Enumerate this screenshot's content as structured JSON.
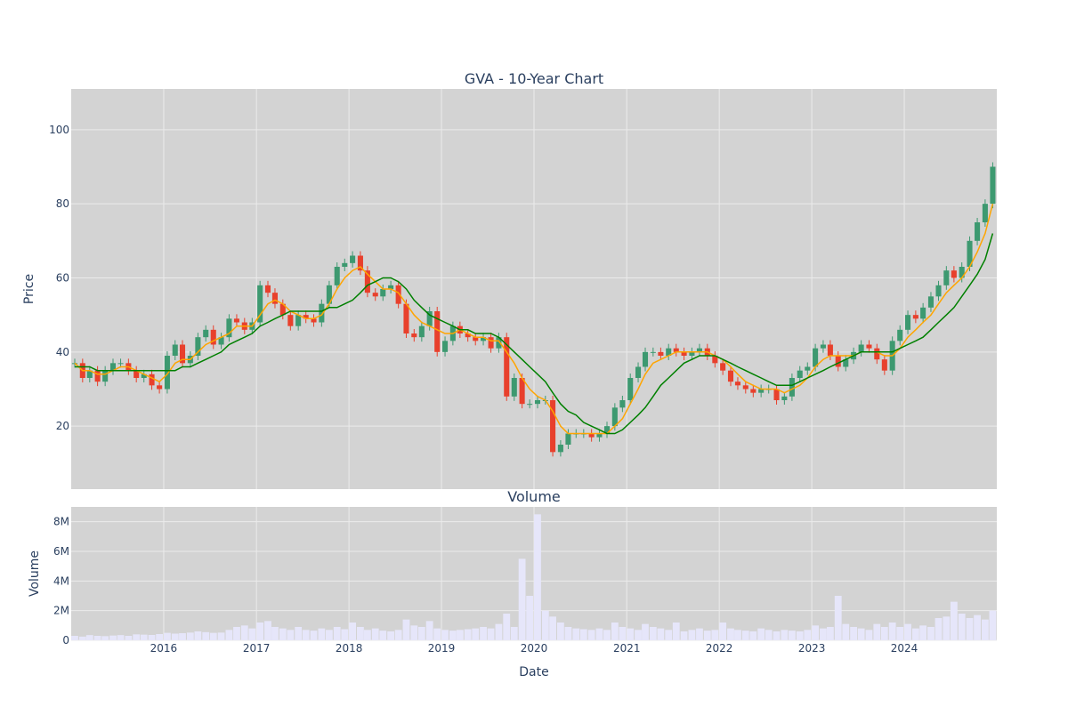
{
  "colors": {
    "plot_bg": "#d3d3d3",
    "grid": "#ebebeb",
    "up": "#3d9970",
    "down": "#e8402c",
    "ma_short": "#ffa500",
    "ma_long": "#008000",
    "volume_bar": "#e6e6fa",
    "text": "#2a3f5f"
  },
  "chart_data": [
    {
      "type": "candlestick",
      "title": "GVA - 10-Year Chart",
      "xlabel": "",
      "ylabel": "Price",
      "x_range": [
        "2015-01-01",
        "2024-12-31"
      ],
      "ylim": [
        3,
        111
      ],
      "grid": true,
      "x_ticks": [
        "2016",
        "2017",
        "2018",
        "2019",
        "2020",
        "2021",
        "2022",
        "2023",
        "2024"
      ],
      "y_ticks": [
        20,
        40,
        60,
        80,
        100
      ],
      "series": [
        {
          "kind": "ohlc",
          "dates": [
            "2015-01",
            "2015-02",
            "2015-03",
            "2015-04",
            "2015-05",
            "2015-06",
            "2015-07",
            "2015-08",
            "2015-09",
            "2015-10",
            "2015-11",
            "2015-12",
            "2016-01",
            "2016-02",
            "2016-03",
            "2016-04",
            "2016-05",
            "2016-06",
            "2016-07",
            "2016-08",
            "2016-09",
            "2016-10",
            "2016-11",
            "2016-12",
            "2017-01",
            "2017-02",
            "2017-03",
            "2017-04",
            "2017-05",
            "2017-06",
            "2017-07",
            "2017-08",
            "2017-09",
            "2017-10",
            "2017-11",
            "2017-12",
            "2018-01",
            "2018-02",
            "2018-03",
            "2018-04",
            "2018-05",
            "2018-06",
            "2018-07",
            "2018-08",
            "2018-09",
            "2018-10",
            "2018-11",
            "2018-12",
            "2019-01",
            "2019-02",
            "2019-03",
            "2019-04",
            "2019-05",
            "2019-06",
            "2019-07",
            "2019-08",
            "2019-09",
            "2019-10",
            "2019-11",
            "2019-12",
            "2020-01",
            "2020-02",
            "2020-03",
            "2020-04",
            "2020-05",
            "2020-06",
            "2020-07",
            "2020-08",
            "2020-09",
            "2020-10",
            "2020-11",
            "2020-12",
            "2021-01",
            "2021-02",
            "2021-03",
            "2021-04",
            "2021-05",
            "2021-06",
            "2021-07",
            "2021-08",
            "2021-09",
            "2021-10",
            "2021-11",
            "2021-12",
            "2022-01",
            "2022-02",
            "2022-03",
            "2022-04",
            "2022-05",
            "2022-06",
            "2022-07",
            "2022-08",
            "2022-09",
            "2022-10",
            "2022-11",
            "2022-12",
            "2023-01",
            "2023-02",
            "2023-03",
            "2023-04",
            "2023-05",
            "2023-06",
            "2023-07",
            "2023-08",
            "2023-09",
            "2023-10",
            "2023-11",
            "2023-12",
            "2024-01",
            "2024-02",
            "2024-03",
            "2024-04",
            "2024-05",
            "2024-06",
            "2024-07",
            "2024-08",
            "2024-09",
            "2024-10",
            "2024-11",
            "2024-12"
          ],
          "close": [
            37,
            33,
            35,
            32,
            35,
            37,
            37,
            35,
            33,
            34,
            31,
            30,
            39,
            42,
            37,
            39,
            44,
            46,
            42,
            44,
            49,
            48,
            46,
            48,
            58,
            56,
            53,
            50,
            47,
            50,
            49,
            48,
            53,
            58,
            63,
            64,
            66,
            62,
            56,
            55,
            57,
            58,
            53,
            45,
            44,
            47,
            51,
            40,
            43,
            47,
            45,
            44,
            43,
            44,
            41,
            44,
            28,
            33,
            26,
            26,
            27,
            27,
            13,
            15,
            18,
            18,
            18,
            17,
            18,
            20,
            25,
            27,
            33,
            36,
            40,
            40,
            39,
            41,
            40,
            39,
            40,
            41,
            39,
            37,
            35,
            32,
            31,
            30,
            29,
            30,
            30,
            27,
            28,
            33,
            35,
            36,
            41,
            42,
            39,
            36,
            38,
            40,
            42,
            41,
            38,
            35,
            43,
            46,
            50,
            49,
            52,
            55,
            58,
            62,
            60,
            63,
            70,
            75,
            80,
            90
          ]
        },
        {
          "kind": "line",
          "name": "",
          "color_key": "ma_short",
          "y": [
            37,
            35,
            35,
            34,
            34,
            35,
            36,
            36,
            35,
            34,
            33,
            32,
            34,
            37,
            38,
            38,
            40,
            42,
            43,
            44,
            45,
            47,
            47,
            47,
            50,
            53,
            54,
            53,
            51,
            50,
            49,
            49,
            50,
            53,
            57,
            60,
            62,
            63,
            61,
            59,
            57,
            57,
            56,
            53,
            50,
            48,
            47,
            46,
            45,
            45,
            46,
            45,
            44,
            44,
            43,
            43,
            40,
            37,
            33,
            30,
            28,
            27,
            24,
            20,
            18,
            18,
            18,
            18,
            18,
            18,
            20,
            22,
            26,
            30,
            34,
            37,
            38,
            39,
            40,
            40,
            40,
            40,
            40,
            39,
            38,
            36,
            34,
            32,
            31,
            30,
            30,
            30,
            29,
            30,
            31,
            33,
            36,
            38,
            39,
            39,
            39,
            39,
            40,
            40,
            40,
            39,
            39,
            41,
            44,
            46,
            48,
            50,
            53,
            56,
            58,
            60,
            63,
            67,
            72,
            80
          ]
        },
        {
          "kind": "line",
          "name": "",
          "color_key": "ma_long",
          "y": [
            36,
            36,
            36,
            35,
            35,
            35,
            35,
            35,
            35,
            35,
            35,
            35,
            35,
            35,
            36,
            36,
            37,
            38,
            39,
            40,
            42,
            43,
            44,
            45,
            47,
            48,
            49,
            50,
            51,
            51,
            51,
            51,
            51,
            52,
            52,
            53,
            54,
            56,
            58,
            59,
            60,
            60,
            59,
            57,
            54,
            52,
            50,
            49,
            48,
            47,
            46,
            46,
            45,
            45,
            45,
            44,
            42,
            40,
            38,
            36,
            34,
            32,
            29,
            26,
            24,
            23,
            21,
            20,
            19,
            18,
            18,
            19,
            21,
            23,
            25,
            28,
            31,
            33,
            35,
            37,
            38,
            39,
            39,
            39,
            38,
            37,
            36,
            35,
            34,
            33,
            32,
            31,
            31,
            31,
            32,
            33,
            34,
            35,
            36,
            37,
            38,
            39,
            40,
            40,
            40,
            40,
            40,
            41,
            42,
            43,
            44,
            46,
            48,
            50,
            52,
            55,
            58,
            61,
            65,
            72
          ]
        }
      ]
    },
    {
      "type": "bar",
      "title": "Volume",
      "xlabel": "Date",
      "ylabel": "Volume",
      "ylim": [
        0,
        9000000
      ],
      "grid": true,
      "x_ticks": [
        "2016",
        "2017",
        "2018",
        "2019",
        "2020",
        "2021",
        "2022",
        "2023",
        "2024"
      ],
      "y_ticks": [
        {
          "value": 0,
          "label": "0"
        },
        {
          "value": 2000000,
          "label": "2M"
        },
        {
          "value": 4000000,
          "label": "4M"
        },
        {
          "value": 6000000,
          "label": "6M"
        },
        {
          "value": 8000000,
          "label": "8M"
        }
      ],
      "values": [
        300000,
        250000,
        350000,
        300000,
        280000,
        320000,
        350000,
        300000,
        400000,
        380000,
        360000,
        420000,
        500000,
        450000,
        480000,
        520000,
        600000,
        550000,
        500000,
        520000,
        700000,
        900000,
        1000000,
        800000,
        1200000,
        1300000,
        900000,
        800000,
        700000,
        900000,
        700000,
        650000,
        800000,
        700000,
        900000,
        750000,
        1200000,
        900000,
        700000,
        800000,
        650000,
        600000,
        700000,
        1400000,
        1000000,
        900000,
        1300000,
        800000,
        700000,
        650000,
        700000,
        750000,
        800000,
        900000,
        800000,
        1100000,
        1800000,
        900000,
        5500000,
        3000000,
        8500000,
        2000000,
        1600000,
        1200000,
        900000,
        800000,
        750000,
        700000,
        800000,
        700000,
        1200000,
        900000,
        800000,
        700000,
        1100000,
        900000,
        800000,
        700000,
        1200000,
        600000,
        700000,
        800000,
        650000,
        700000,
        1200000,
        800000,
        700000,
        650000,
        600000,
        800000,
        700000,
        600000,
        700000,
        650000,
        600000,
        700000,
        1000000,
        800000,
        900000,
        3000000,
        1100000,
        900000,
        800000,
        700000,
        1100000,
        900000,
        1200000,
        900000,
        1100000,
        800000,
        1000000,
        900000,
        1500000,
        1600000,
        2600000,
        1800000,
        1500000,
        1700000,
        1400000,
        2000000
      ]
    }
  ]
}
